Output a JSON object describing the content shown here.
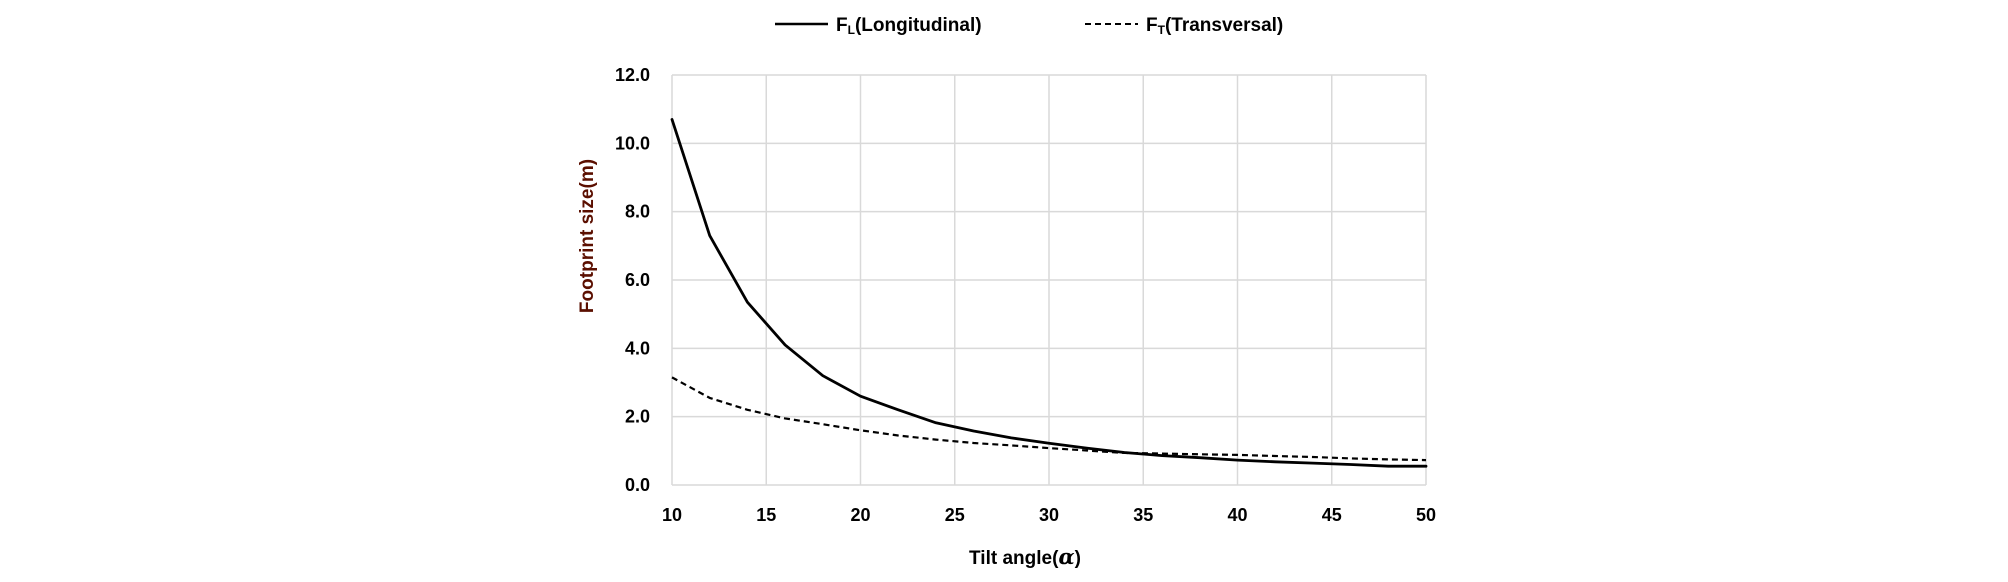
{
  "chart_data": {
    "type": "line",
    "title": "",
    "xlabel": "Tilt angle(",
    "xlabel_symbol": "α",
    "xlabel_close": ")",
    "ylabel": "Footprint  size(m)",
    "xlim": [
      10,
      50
    ],
    "ylim": [
      0,
      12
    ],
    "x_ticks": [
      10,
      15,
      20,
      25,
      30,
      35,
      40,
      45,
      50
    ],
    "y_ticks": [
      "0.0",
      "2.0",
      "4.0",
      "6.0",
      "8.0",
      "10.0",
      "12.0"
    ],
    "grid": true,
    "legend_position": "top",
    "x": [
      10,
      12,
      14,
      16,
      18,
      20,
      22,
      24,
      26,
      28,
      30,
      32,
      34,
      36,
      38,
      40,
      42,
      44,
      46,
      48,
      50
    ],
    "series": [
      {
        "name_main": "F",
        "name_sub": "L",
        "name_rest": "(Longitudinal)",
        "style": "solid",
        "values": [
          10.7,
          7.3,
          5.35,
          4.1,
          3.2,
          2.6,
          2.2,
          1.82,
          1.58,
          1.38,
          1.22,
          1.08,
          0.95,
          0.86,
          0.8,
          0.73,
          0.68,
          0.64,
          0.6,
          0.55,
          0.55
        ]
      },
      {
        "name_main": "F",
        "name_sub": "T",
        "name_rest": "(Transversal)",
        "style": "dashed",
        "values": [
          3.15,
          2.55,
          2.2,
          1.95,
          1.78,
          1.6,
          1.45,
          1.33,
          1.23,
          1.16,
          1.08,
          1.01,
          0.94,
          0.92,
          0.9,
          0.88,
          0.85,
          0.82,
          0.78,
          0.75,
          0.73
        ]
      }
    ],
    "colors": {
      "line": "#000000",
      "grid": "#d9d9d9",
      "ylabel": "#5b0f00"
    }
  }
}
